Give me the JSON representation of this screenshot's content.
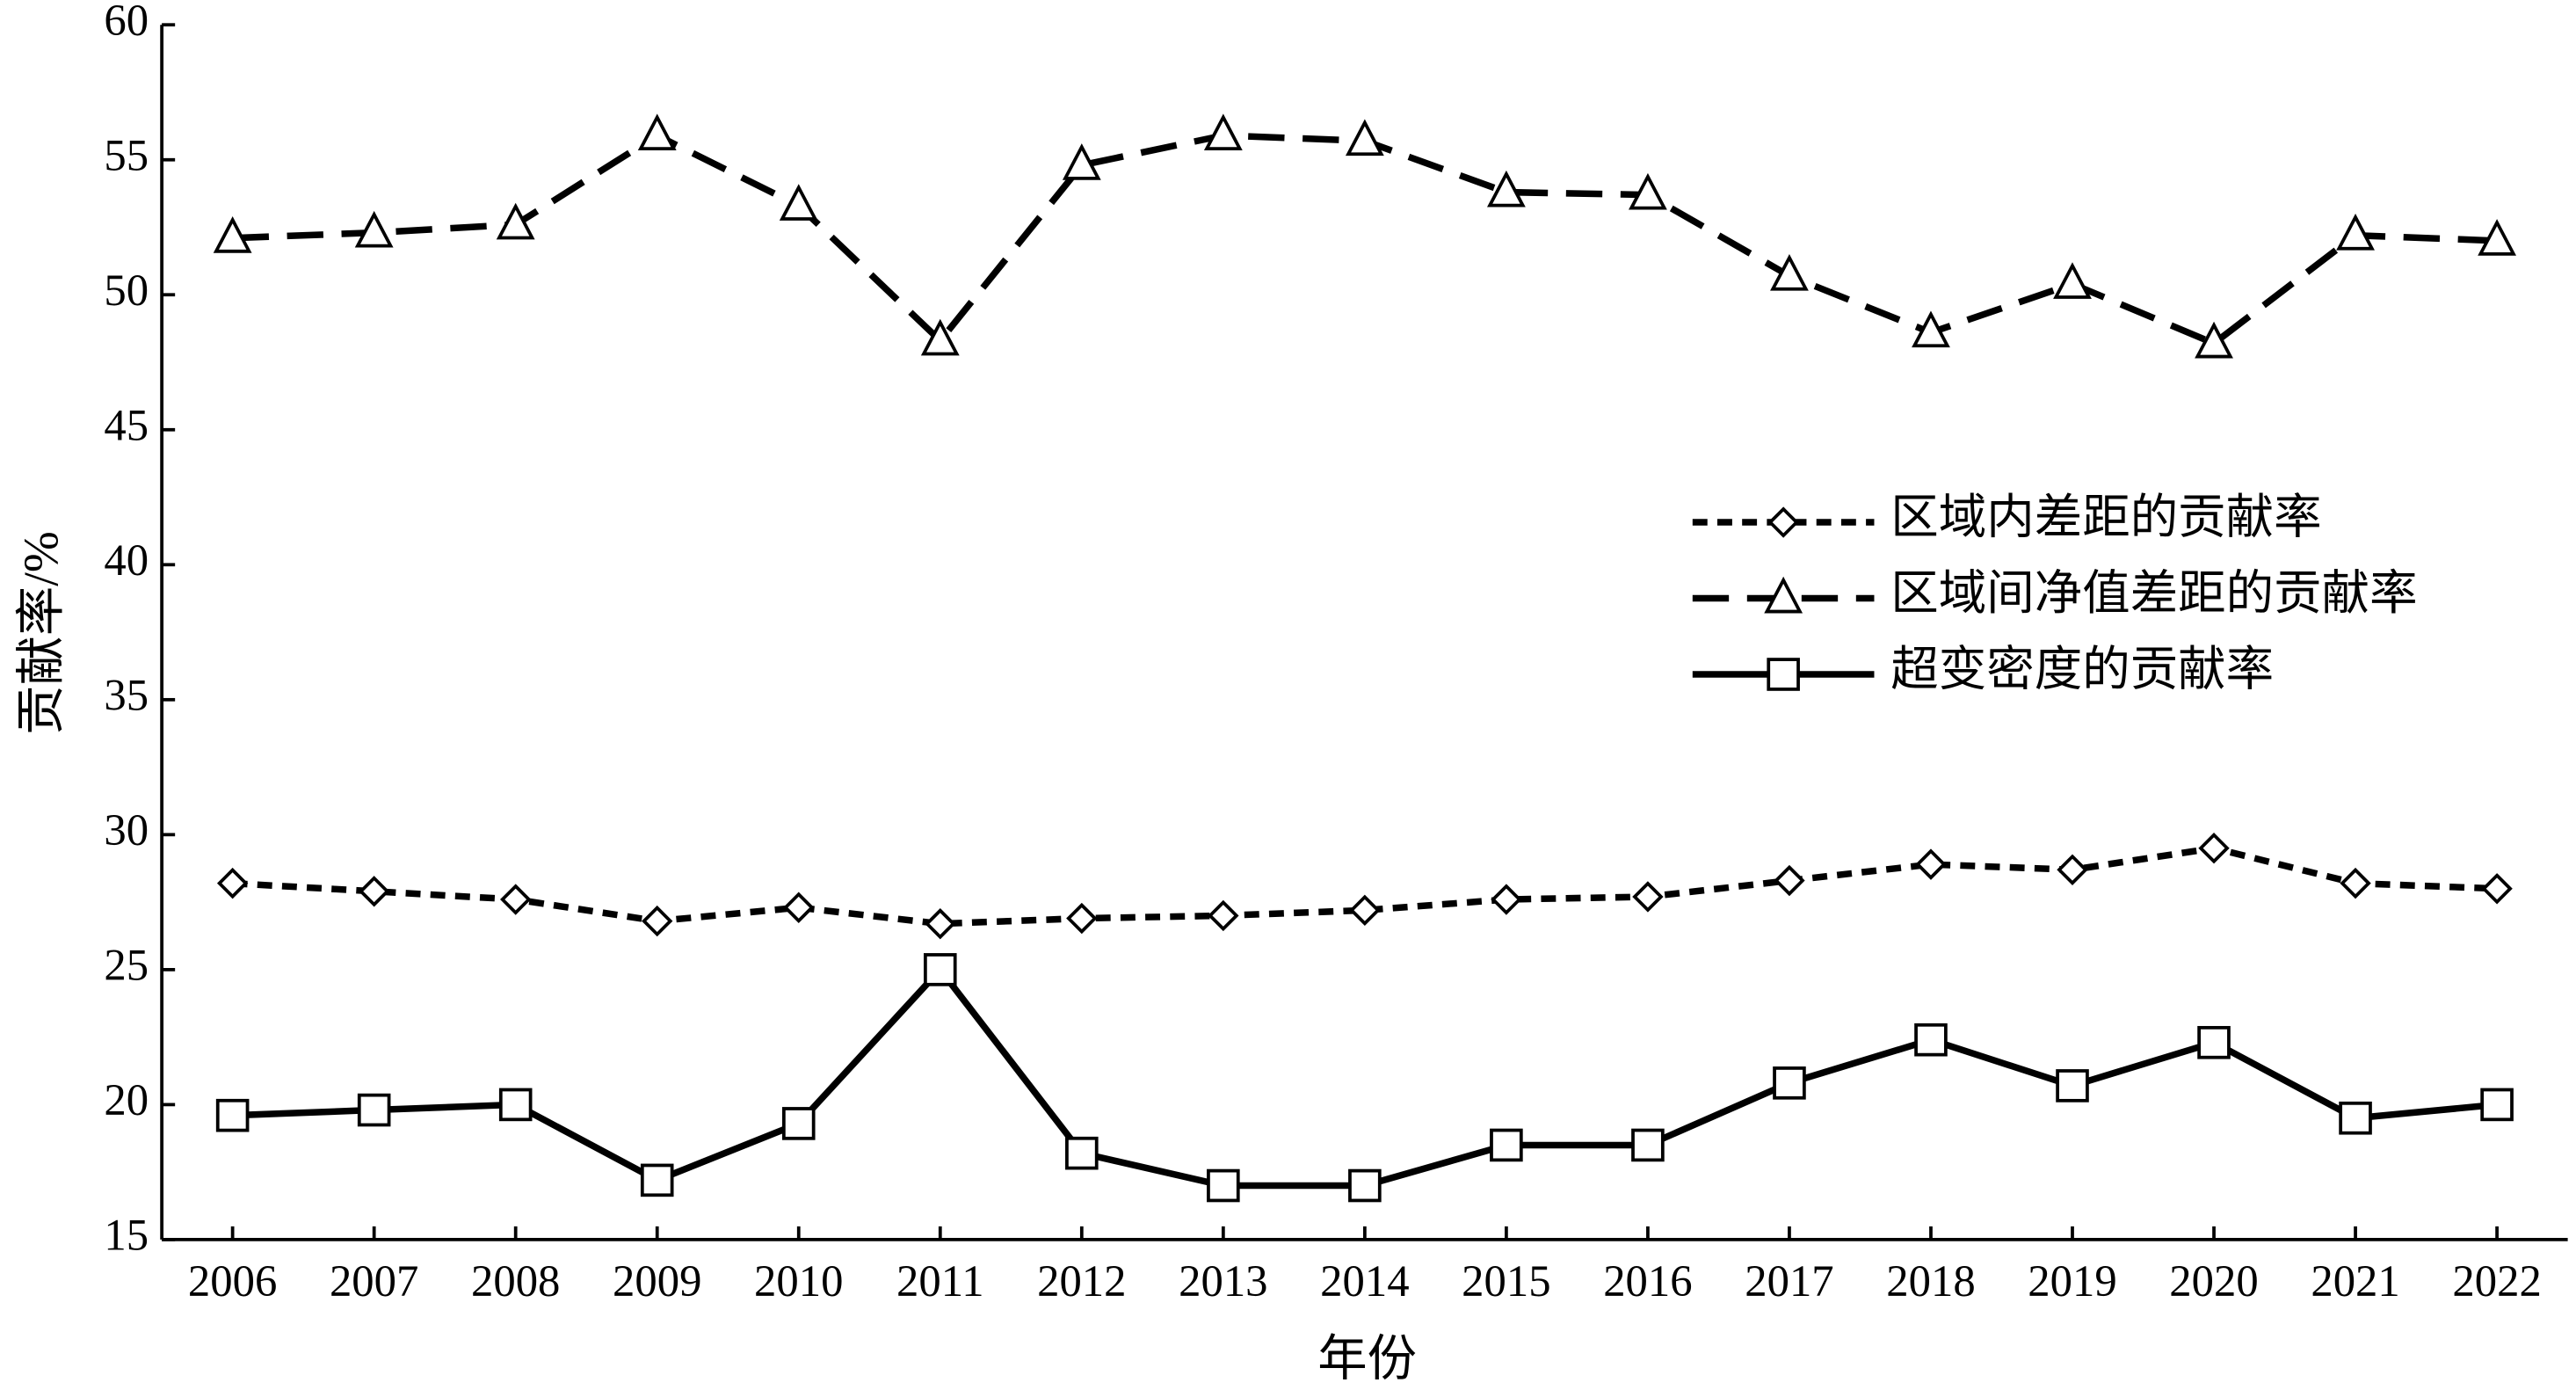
{
  "chart_data": {
    "type": "line",
    "x_label": "年份",
    "y_label": "贡献率/%",
    "categories": [
      "2006",
      "2007",
      "2008",
      "2009",
      "2010",
      "2011",
      "2012",
      "2013",
      "2014",
      "2015",
      "2016",
      "2017",
      "2018",
      "2019",
      "2020",
      "2021",
      "2022"
    ],
    "series": [
      {
        "name": "区域内差距的贡献率",
        "color": "#000000",
        "marker": "diamond",
        "dash": "short",
        "values": [
          28.2,
          27.9,
          27.6,
          26.8,
          27.3,
          26.7,
          26.9,
          27.0,
          27.2,
          27.6,
          27.7,
          28.3,
          28.9,
          28.7,
          29.5,
          28.2,
          28.0
        ]
      },
      {
        "name": "区域间净值差距的贡献率",
        "color": "#000000",
        "marker": "triangle",
        "dash": "long",
        "values": [
          52.1,
          52.3,
          52.6,
          55.9,
          53.3,
          48.3,
          54.8,
          55.9,
          55.7,
          53.8,
          53.7,
          50.7,
          48.6,
          50.4,
          48.2,
          52.2,
          52.0
        ]
      },
      {
        "name": "超变密度的贡献率",
        "color": "#000000",
        "marker": "square",
        "dash": "solid",
        "values": [
          19.6,
          19.8,
          20.0,
          17.2,
          19.3,
          25.0,
          18.2,
          17.0,
          17.0,
          18.5,
          18.5,
          20.8,
          22.4,
          20.7,
          22.3,
          19.5,
          20.0
        ]
      }
    ],
    "ylim": [
      15,
      60
    ],
    "yticks": [
      15,
      20,
      25,
      30,
      35,
      40,
      45,
      50,
      55,
      60
    ],
    "grid": false,
    "legend": "center-right"
  }
}
